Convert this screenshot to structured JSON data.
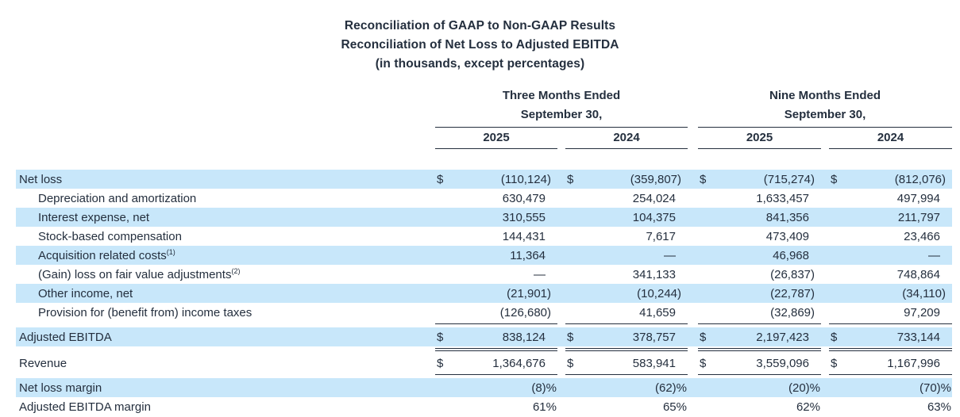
{
  "title": {
    "line1": "Reconciliation of GAAP to Non-GAAP Results",
    "line2": "Reconciliation of Net Loss to Adjusted EBITDA",
    "line3": "(in thousands, except percentages)"
  },
  "currency_symbol": "$",
  "columns": {
    "groups": [
      {
        "title_line1": "Three Months Ended",
        "title_line2": "September 30,",
        "years": [
          "2025",
          "2024"
        ]
      },
      {
        "title_line1": "Nine Months Ended",
        "title_line2": "September 30,",
        "years": [
          "2025",
          "2024"
        ]
      }
    ]
  },
  "rows": [
    {
      "label": "Net loss",
      "sup": "",
      "indent": false,
      "shaded": true,
      "dollar": true,
      "rule_after": "",
      "values": [
        "(110,124)",
        "(359,807)",
        "(715,274)",
        "(812,076)"
      ]
    },
    {
      "label": "Depreciation and amortization",
      "sup": "",
      "indent": true,
      "shaded": false,
      "dollar": false,
      "rule_after": "",
      "values": [
        "630,479",
        "254,024",
        "1,633,457",
        "497,994"
      ]
    },
    {
      "label": "Interest expense, net",
      "sup": "",
      "indent": true,
      "shaded": true,
      "dollar": false,
      "rule_after": "",
      "values": [
        "310,555",
        "104,375",
        "841,356",
        "211,797"
      ]
    },
    {
      "label": "Stock-based compensation",
      "sup": "",
      "indent": true,
      "shaded": false,
      "dollar": false,
      "rule_after": "",
      "values": [
        "144,431",
        "7,617",
        "473,409",
        "23,466"
      ]
    },
    {
      "label": "Acquisition related costs",
      "sup": "(1)",
      "indent": true,
      "shaded": true,
      "dollar": false,
      "rule_after": "",
      "values": [
        "11,364",
        "—",
        "46,968",
        "—"
      ]
    },
    {
      "label": "(Gain) loss on fair value adjustments",
      "sup": "(2)",
      "indent": true,
      "shaded": false,
      "dollar": false,
      "rule_after": "",
      "values": [
        "—",
        "341,133",
        "(26,837)",
        "748,864"
      ]
    },
    {
      "label": "Other income, net",
      "sup": "",
      "indent": true,
      "shaded": true,
      "dollar": false,
      "rule_after": "",
      "values": [
        "(21,901)",
        "(10,244)",
        "(22,787)",
        "(34,110)"
      ]
    },
    {
      "label": "Provision for (benefit from) income taxes",
      "sup": "",
      "indent": true,
      "shaded": false,
      "dollar": false,
      "rule_after": "single",
      "values": [
        "(126,680)",
        "41,659",
        "(32,869)",
        "97,209"
      ]
    },
    {
      "label": "Adjusted EBITDA",
      "sup": "",
      "indent": false,
      "shaded": true,
      "dollar": true,
      "rule_after": "double",
      "values": [
        "838,124",
        "378,757",
        "2,197,423",
        "733,144"
      ]
    },
    {
      "label": "Revenue",
      "sup": "",
      "indent": false,
      "shaded": false,
      "dollar": true,
      "rule_after": "single",
      "values": [
        "1,364,676",
        "583,941",
        "3,559,096",
        "1,167,996"
      ]
    },
    {
      "label": "Net loss margin",
      "sup": "",
      "indent": false,
      "shaded": true,
      "dollar": false,
      "rule_after": "",
      "values": [
        "(8)%",
        "(62)%",
        "(20)%",
        "(70)%"
      ]
    },
    {
      "label": "Adjusted EBITDA margin",
      "sup": "",
      "indent": false,
      "shaded": false,
      "dollar": false,
      "rule_after": "",
      "values": [
        "61%",
        "65%",
        "62%",
        "63%"
      ]
    }
  ],
  "colors": {
    "highlight": "#c8e7fa",
    "text": "#242f3e",
    "rule": "#242f3e",
    "background": "#ffffff"
  }
}
